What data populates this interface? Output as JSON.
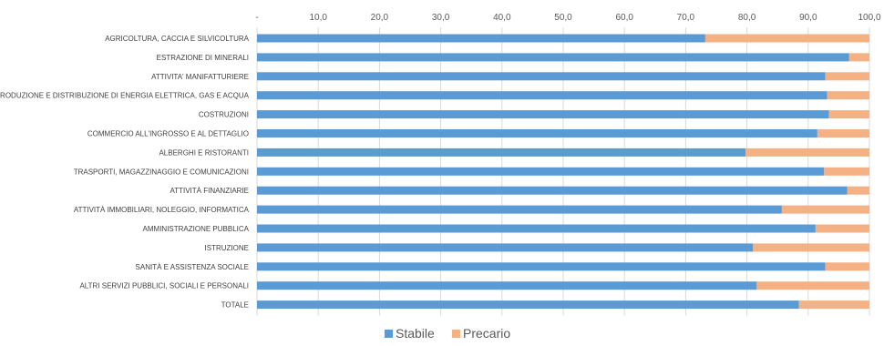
{
  "chart_data": {
    "type": "bar",
    "orientation": "horizontal",
    "stacked": true,
    "categories": [
      "AGRICOLTURA, CACCIA E SILVICOLTURA",
      "ESTRAZIONE DI MINERALI",
      "ATTIVITA' MANIFATTURIERE",
      "PRODUZIONE E DISTRIBUZIONE DI ENERGIA ELETTRICA, GAS E ACQUA",
      "COSTRUZIONI",
      "COMMERCIO ALL'INGROSSO E AL DETTAGLIO",
      "ALBERGHI E RISTORANTI",
      "TRASPORTI, MAGAZZINAGGIO E COMUNICAZIONI",
      "ATTIVITÀ FINANZIARIE",
      "ATTIVITÀ IMMOBILIARI, NOLEGGIO, INFORMATICA",
      "AMMINISTRAZIONE PUBBLICA",
      "ISTRUZIONE",
      "SANITÀ E ASSISTENZA SOCIALE",
      "ALTRI SERVIZI PUBBLICI, SOCIALI E PERSONALI",
      "TOTALE"
    ],
    "series": [
      {
        "name": "Stabile",
        "color": "#5b9bd5",
        "values": [
          73.2,
          96.7,
          92.8,
          93.1,
          93.4,
          91.5,
          79.8,
          92.6,
          96.4,
          85.7,
          91.2,
          81.0,
          92.8,
          81.6,
          88.5
        ]
      },
      {
        "name": "Precario",
        "color": "#f4b183",
        "values": [
          26.8,
          3.3,
          7.2,
          6.9,
          6.6,
          8.5,
          20.2,
          7.4,
          3.6,
          14.3,
          8.8,
          19.0,
          7.2,
          18.4,
          11.5
        ]
      }
    ],
    "x_ticks": [
      "-",
      "10,0",
      "20,0",
      "30,0",
      "40,0",
      "50,0",
      "60,0",
      "70,0",
      "80,0",
      "90,0",
      "100,0"
    ],
    "xlim": [
      0,
      100
    ],
    "legend_position": "bottom",
    "grid": true,
    "gridline_color": "#d9d9d9"
  }
}
